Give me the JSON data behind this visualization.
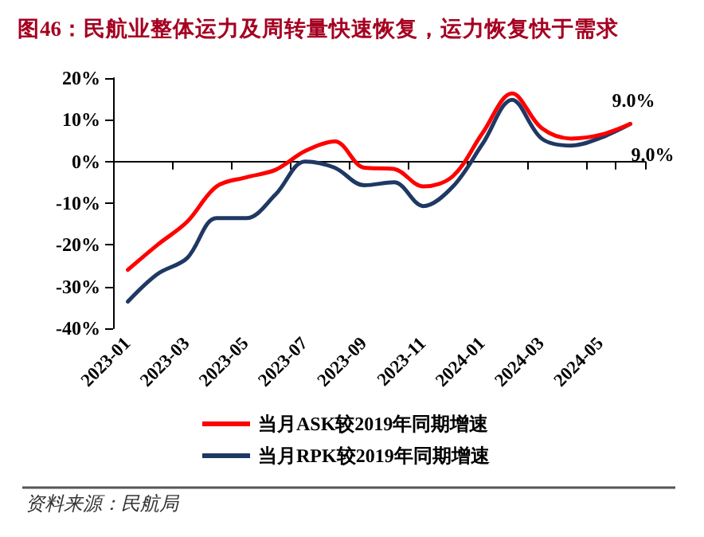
{
  "chart_data": {
    "type": "line",
    "title": "图46：民航业整体运力及周转量快速恢复，运力恢复快于需求",
    "categories": [
      "2023-01",
      null,
      "2023-03",
      null,
      "2023-05",
      null,
      "2023-07",
      null,
      "2023-09",
      null,
      "2023-11",
      null,
      "2024-01",
      null,
      "2024-03",
      null,
      "2024-05",
      null
    ],
    "series": [
      {
        "name": "当月ASK较2019年同期增速",
        "color": "#ff0000",
        "values": [
          -26,
          -20,
          -14.5,
          -6,
          -3.8,
          -2,
          2.5,
          4.8,
          -1.5,
          -1.8,
          -6,
          -3.5,
          6.8,
          16.3,
          8,
          5.5,
          6.4,
          9.0
        ],
        "value_labels": [
          null,
          null,
          null,
          null,
          null,
          null,
          null,
          null,
          null,
          null,
          null,
          null,
          null,
          null,
          null,
          null,
          null,
          "9.0%"
        ]
      },
      {
        "name": "当月RPK较2019年同期增速",
        "color": "#1f3864",
        "values": [
          -33.6,
          -27,
          -23.2,
          -13.6,
          -13.6,
          -7.9,
          0,
          -1.5,
          -5.7,
          -5,
          -10.7,
          -6,
          4.2,
          14.8,
          5.5,
          3.8,
          5.7,
          9.0
        ],
        "value_labels": [
          null,
          null,
          null,
          null,
          null,
          null,
          null,
          null,
          null,
          null,
          null,
          null,
          null,
          null,
          null,
          null,
          null,
          "9.0%"
        ]
      }
    ],
    "ylim": [
      -40,
      20
    ],
    "yticks": [
      {
        "value": -40,
        "label": "-40%"
      },
      {
        "value": -30,
        "label": "-30%"
      },
      {
        "value": -20,
        "label": "-20%"
      },
      {
        "value": -10,
        "label": "-10%"
      },
      {
        "value": 0,
        "label": "0%"
      },
      {
        "value": 10,
        "label": "10%"
      },
      {
        "value": 20,
        "label": "20%"
      }
    ],
    "legend": "bottom",
    "marker": "none",
    "line_style": "solid",
    "annotations": [
      "资料来源：民航局"
    ]
  }
}
